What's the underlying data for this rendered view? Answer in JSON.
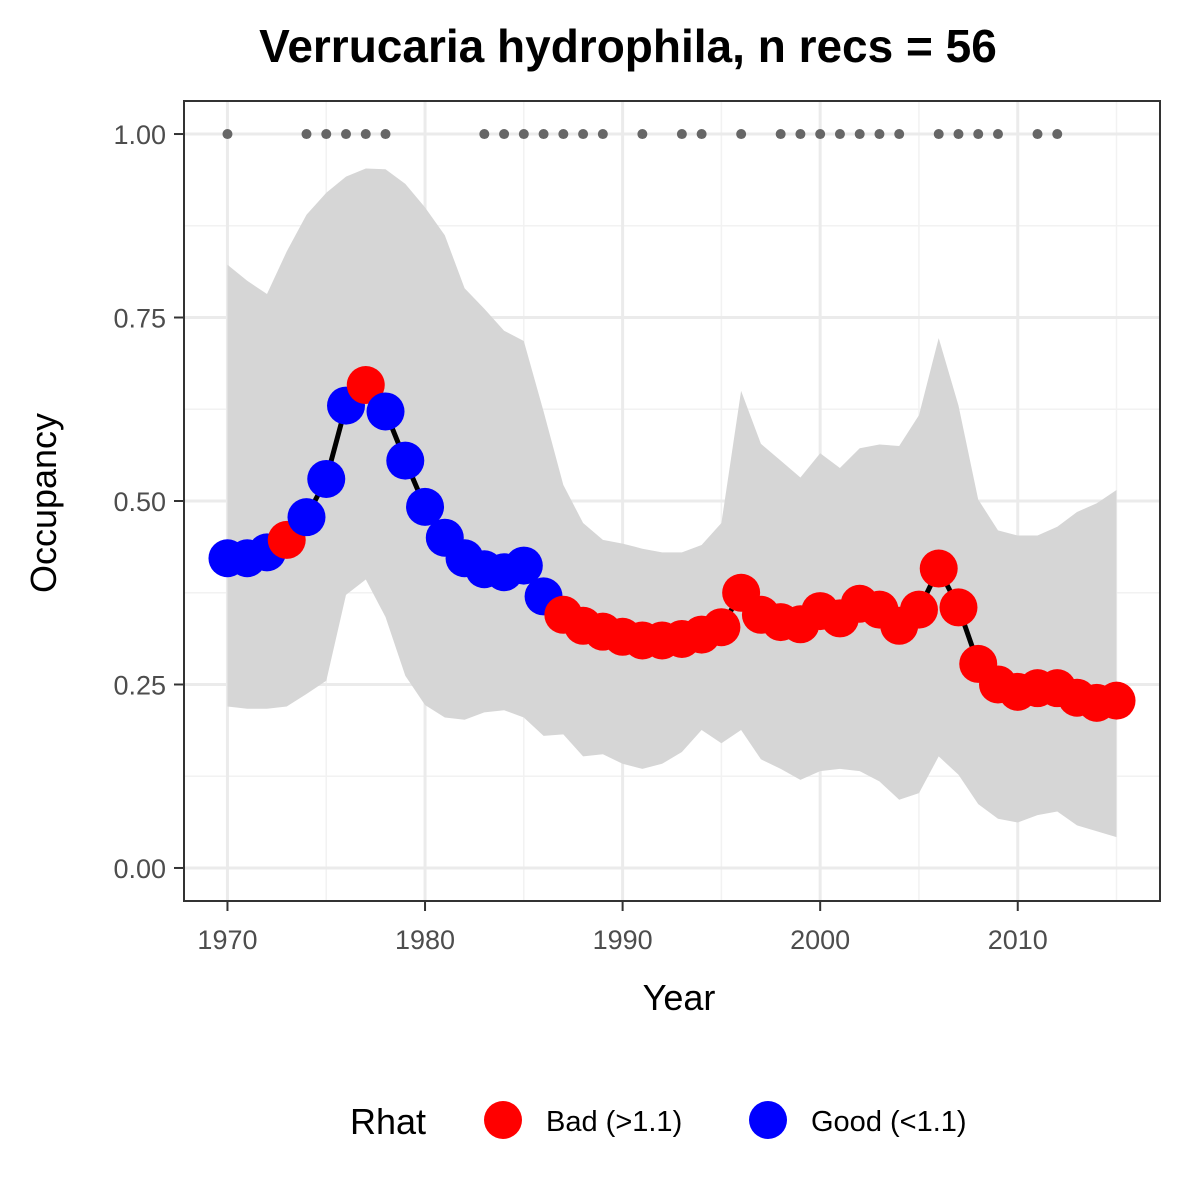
{
  "chart_data": {
    "type": "line",
    "title": "Verrucaria hydrophila, n recs = 56",
    "xlabel": "Year",
    "ylabel": "Occupancy",
    "xlim": [
      1967.8,
      1917.2
    ],
    "ylim": [
      -0.045,
      1.045
    ],
    "x_ticks": [
      1970,
      1980,
      1990,
      2000,
      2010
    ],
    "x_tick_labels": [
      "1970",
      "1980",
      "1990",
      "2000",
      "2010"
    ],
    "y_ticks": [
      0,
      0.25,
      0.5,
      0.75,
      1.0
    ],
    "y_tick_labels": [
      "0.00",
      "0.25",
      "0.50",
      "0.75",
      "1.00"
    ],
    "grid": true,
    "years": [
      1970,
      1971,
      1972,
      1973,
      1974,
      1975,
      1976,
      1977,
      1978,
      1979,
      1980,
      1981,
      1982,
      1983,
      1984,
      1985,
      1986,
      1987,
      1988,
      1989,
      1990,
      1991,
      1992,
      1993,
      1994,
      1995,
      1996,
      1997,
      1998,
      1999,
      2000,
      2001,
      2002,
      2003,
      2004,
      2005,
      2006,
      2007,
      2008,
      2009,
      2010,
      2011,
      2012,
      2013,
      2014,
      2015
    ],
    "occupancy": [
      0.422,
      0.422,
      0.43,
      0.447,
      0.478,
      0.53,
      0.63,
      0.658,
      0.622,
      0.555,
      0.492,
      0.45,
      0.422,
      0.407,
      0.403,
      0.412,
      0.37,
      0.345,
      0.33,
      0.322,
      0.315,
      0.31,
      0.31,
      0.312,
      0.318,
      0.328,
      0.375,
      0.345,
      0.335,
      0.332,
      0.35,
      0.34,
      0.36,
      0.352,
      0.33,
      0.352,
      0.408,
      0.355,
      0.278,
      0.25,
      0.24,
      0.245,
      0.245,
      0.232,
      0.225,
      0.228
    ],
    "lower": [
      0.22,
      0.217,
      0.217,
      0.22,
      0.237,
      0.255,
      0.372,
      0.393,
      0.342,
      0.262,
      0.222,
      0.205,
      0.202,
      0.212,
      0.215,
      0.205,
      0.18,
      0.182,
      0.152,
      0.155,
      0.142,
      0.135,
      0.142,
      0.158,
      0.188,
      0.17,
      0.188,
      0.148,
      0.135,
      0.12,
      0.132,
      0.135,
      0.132,
      0.118,
      0.093,
      0.102,
      0.152,
      0.127,
      0.087,
      0.067,
      0.062,
      0.072,
      0.077,
      0.058,
      0.05,
      0.042
    ],
    "upper": [
      0.822,
      0.8,
      0.782,
      0.84,
      0.89,
      0.92,
      0.942,
      0.953,
      0.952,
      0.932,
      0.9,
      0.862,
      0.79,
      0.762,
      0.732,
      0.718,
      0.622,
      0.522,
      0.47,
      0.447,
      0.442,
      0.435,
      0.43,
      0.43,
      0.44,
      0.47,
      0.65,
      0.578,
      0.555,
      0.532,
      0.565,
      0.545,
      0.572,
      0.577,
      0.575,
      0.617,
      0.722,
      0.63,
      0.502,
      0.46,
      0.453,
      0.453,
      0.465,
      0.485,
      0.497,
      0.515
    ],
    "rhat": [
      "Good",
      "Good",
      "Good",
      "Bad",
      "Good",
      "Good",
      "Good",
      "Bad",
      "Good",
      "Good",
      "Good",
      "Good",
      "Good",
      "Good",
      "Good",
      "Good",
      "Good",
      "Bad",
      "Bad",
      "Bad",
      "Bad",
      "Bad",
      "Bad",
      "Bad",
      "Bad",
      "Bad",
      "Bad",
      "Bad",
      "Bad",
      "Bad",
      "Bad",
      "Bad",
      "Bad",
      "Bad",
      "Bad",
      "Bad",
      "Bad",
      "Bad",
      "Bad",
      "Bad",
      "Bad",
      "Bad",
      "Bad",
      "Bad",
      "Bad",
      "Bad"
    ],
    "record_years": [
      1970,
      1974,
      1975,
      1976,
      1977,
      1978,
      1983,
      1984,
      1985,
      1986,
      1987,
      1988,
      1989,
      1991,
      1993,
      1994,
      1996,
      1998,
      1999,
      2000,
      2001,
      2002,
      2003,
      2004,
      2006,
      2007,
      2008,
      2009,
      2011,
      2012
    ],
    "record_value": 1.0,
    "colors": {
      "Bad": "#ff0000",
      "Good": "#0000ff",
      "ribbon": "#d6d6d6",
      "line": "#000000",
      "records": "#666666"
    },
    "legend": {
      "title": "Rhat",
      "placement": "bottom",
      "entries": [
        {
          "key": "Bad",
          "label": "Bad (>1.1)"
        },
        {
          "key": "Good",
          "label": "Good (<1.1)"
        }
      ]
    }
  }
}
